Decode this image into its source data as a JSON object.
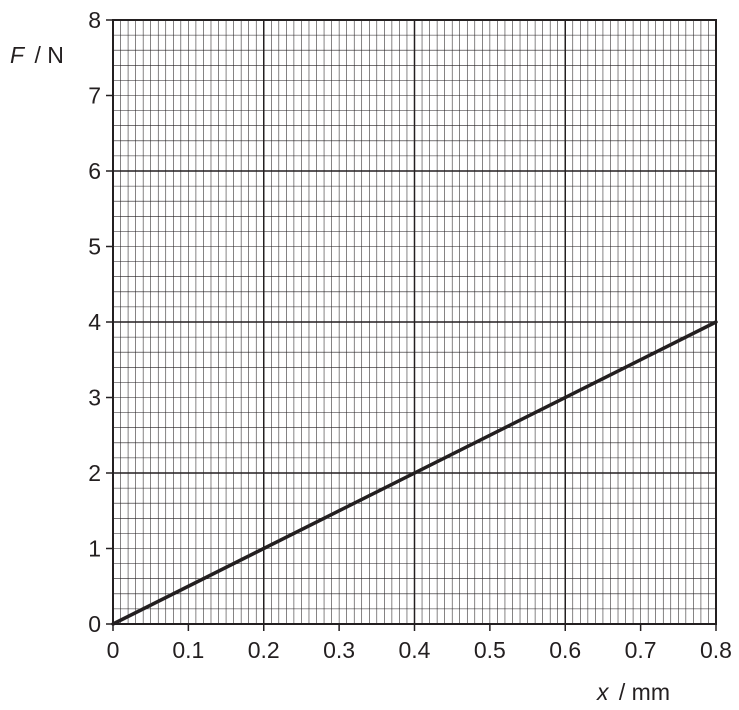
{
  "chart_data": {
    "type": "line",
    "title": "",
    "xlabel": {
      "symbol": "x",
      "unit": "/ mm"
    },
    "ylabel": {
      "symbol": "F",
      "unit": "/ N"
    },
    "xlim": [
      0,
      0.8
    ],
    "ylim": [
      0,
      8
    ],
    "x_ticks": [
      "0",
      "0.1",
      "0.2",
      "0.3",
      "0.4",
      "0.5",
      "0.6",
      "0.7",
      "0.8"
    ],
    "y_ticks": [
      "0",
      "1",
      "2",
      "3",
      "4",
      "5",
      "6",
      "7",
      "8"
    ],
    "grid": {
      "major": true,
      "minor": true,
      "minor_per_major_x": 10,
      "minor_per_major_y": 5
    },
    "series": [
      {
        "points": [
          {
            "x": 0,
            "y": 0
          },
          {
            "x": 0.8,
            "y": 4
          }
        ]
      }
    ]
  },
  "colors": {
    "ink": "#231f20",
    "background": "#ffffff"
  }
}
